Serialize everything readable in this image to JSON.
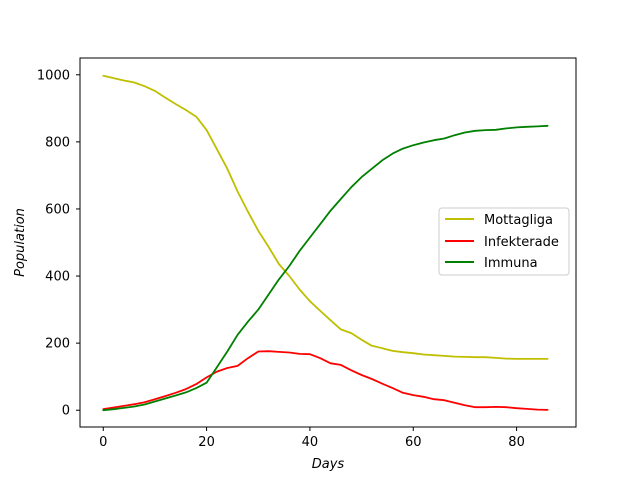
{
  "chart_data": {
    "type": "line",
    "title": "",
    "xlabel": "Days",
    "ylabel": "Population",
    "xlim": [
      -4.5,
      91.5
    ],
    "ylim": [
      -50,
      1050
    ],
    "xticks": [
      0,
      20,
      40,
      60,
      80
    ],
    "yticks": [
      0,
      200,
      400,
      600,
      800,
      1000
    ],
    "grid": false,
    "legend_position": "center-right",
    "series": [
      {
        "name": "Mottagliga",
        "color": "#bfbf00",
        "x": [
          0,
          2,
          4,
          6,
          8,
          10,
          12,
          14,
          16,
          18,
          20,
          22,
          24,
          26,
          28,
          30,
          32,
          34,
          36,
          38,
          40,
          42,
          44,
          46,
          48,
          50,
          52,
          54,
          56,
          58,
          60,
          62,
          64,
          66,
          68,
          70,
          72,
          74,
          76,
          78,
          80,
          82,
          84,
          86
        ],
        "y": [
          997,
          990,
          983,
          977,
          966,
          952,
          932,
          913,
          895,
          875,
          835,
          778,
          720,
          652,
          592,
          535,
          487,
          436,
          400,
          360,
          325,
          296,
          268,
          241,
          230,
          210,
          192,
          185,
          177,
          173,
          170,
          166,
          164,
          162,
          160,
          159,
          158,
          158,
          156,
          154,
          153,
          153,
          153,
          153
        ]
      },
      {
        "name": "Infekterade",
        "color": "#ff0000",
        "x": [
          0,
          2,
          4,
          6,
          8,
          10,
          12,
          14,
          16,
          18,
          20,
          22,
          24,
          26,
          28,
          30,
          32,
          34,
          36,
          38,
          40,
          42,
          44,
          46,
          48,
          50,
          52,
          54,
          56,
          58,
          60,
          62,
          64,
          66,
          68,
          70,
          72,
          74,
          76,
          78,
          80,
          82,
          84,
          86
        ],
        "y": [
          3,
          8,
          13,
          18,
          24,
          33,
          42,
          52,
          63,
          78,
          98,
          115,
          126,
          132,
          155,
          175,
          176,
          174,
          172,
          168,
          167,
          155,
          140,
          135,
          119,
          105,
          93,
          79,
          66,
          52,
          45,
          40,
          33,
          30,
          22,
          15,
          9,
          9,
          10,
          9,
          6,
          4,
          2,
          1
        ]
      },
      {
        "name": "Immuna",
        "color": "#008000",
        "x": [
          0,
          2,
          4,
          6,
          8,
          10,
          12,
          14,
          16,
          18,
          20,
          22,
          24,
          26,
          28,
          30,
          32,
          34,
          36,
          38,
          40,
          42,
          44,
          46,
          48,
          50,
          52,
          54,
          56,
          58,
          60,
          62,
          64,
          66,
          68,
          70,
          72,
          74,
          76,
          78,
          80,
          82,
          84,
          86
        ],
        "y": [
          0,
          3,
          7,
          11,
          17,
          26,
          35,
          44,
          53,
          66,
          82,
          128,
          175,
          225,
          264,
          300,
          345,
          390,
          430,
          475,
          515,
          555,
          595,
          630,
          665,
          695,
          720,
          745,
          765,
          780,
          790,
          798,
          805,
          810,
          820,
          828,
          833,
          835,
          836,
          840,
          843,
          845,
          846,
          848
        ]
      }
    ]
  }
}
